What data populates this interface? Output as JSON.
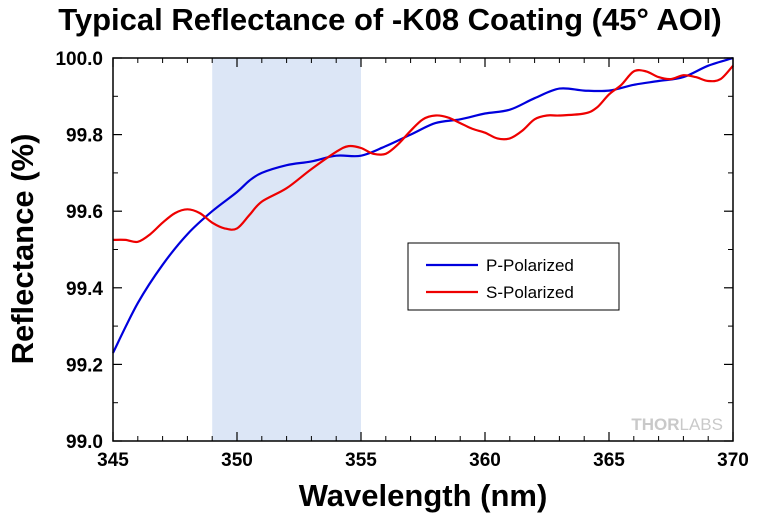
{
  "chart_data": {
    "type": "line",
    "title": "Typical Reflectance of -K08 Coating (45° AOI)",
    "xlabel": "Wavelength (nm)",
    "ylabel": "Reflectance (%)",
    "xlim": [
      345,
      370
    ],
    "ylim": [
      99.0,
      100.0
    ],
    "xticks": [
      "345",
      "350",
      "355",
      "360",
      "365",
      "370"
    ],
    "yticks": [
      "99.0",
      "99.2",
      "99.4",
      "99.6",
      "99.8",
      "100.0"
    ],
    "grid": false,
    "legend_position": "center-right",
    "highlight_band": {
      "x0": 349,
      "x1": 355,
      "color": "#dce6f6"
    },
    "series": [
      {
        "name": "P-Polarized",
        "color": "#0000dd",
        "x": [
          345,
          346,
          347,
          348,
          349,
          350,
          350.5,
          351,
          352,
          353,
          354,
          355,
          356,
          357,
          358,
          359,
          360,
          361,
          362,
          363,
          364,
          365,
          366,
          367,
          368,
          369,
          370
        ],
        "y": [
          99.23,
          99.36,
          99.46,
          99.54,
          99.6,
          99.65,
          99.68,
          99.7,
          99.72,
          99.73,
          99.745,
          99.745,
          99.77,
          99.8,
          99.83,
          99.84,
          99.855,
          99.865,
          99.895,
          99.92,
          99.915,
          99.915,
          99.93,
          99.94,
          99.95,
          99.98,
          100.0
        ]
      },
      {
        "name": "S-Polarized",
        "color": "#ee0000",
        "x": [
          345,
          345.5,
          346,
          346.5,
          347,
          347.5,
          348,
          348.5,
          349,
          349.5,
          350,
          350.5,
          351,
          352,
          353,
          354,
          354.5,
          355,
          355.5,
          356,
          356.5,
          357,
          357.5,
          358,
          358.5,
          359,
          359.5,
          360,
          360.5,
          361,
          361.5,
          362,
          362.5,
          363,
          364,
          364.5,
          365,
          365.5,
          366,
          366.5,
          367,
          367.5,
          368,
          368.5,
          369,
          369.5,
          370
        ],
        "y": [
          99.525,
          99.525,
          99.52,
          99.54,
          99.57,
          99.595,
          99.605,
          99.595,
          99.57,
          99.555,
          99.555,
          99.59,
          99.625,
          99.66,
          99.71,
          99.755,
          99.77,
          99.765,
          99.75,
          99.75,
          99.775,
          99.81,
          99.84,
          99.85,
          99.845,
          99.83,
          99.815,
          99.805,
          99.79,
          99.79,
          99.81,
          99.84,
          99.85,
          99.85,
          99.855,
          99.87,
          99.905,
          99.93,
          99.965,
          99.965,
          99.95,
          99.945,
          99.955,
          99.95,
          99.94,
          99.945,
          99.98
        ]
      }
    ],
    "watermark": {
      "part1": "THOR",
      "part2": "LABS"
    }
  }
}
